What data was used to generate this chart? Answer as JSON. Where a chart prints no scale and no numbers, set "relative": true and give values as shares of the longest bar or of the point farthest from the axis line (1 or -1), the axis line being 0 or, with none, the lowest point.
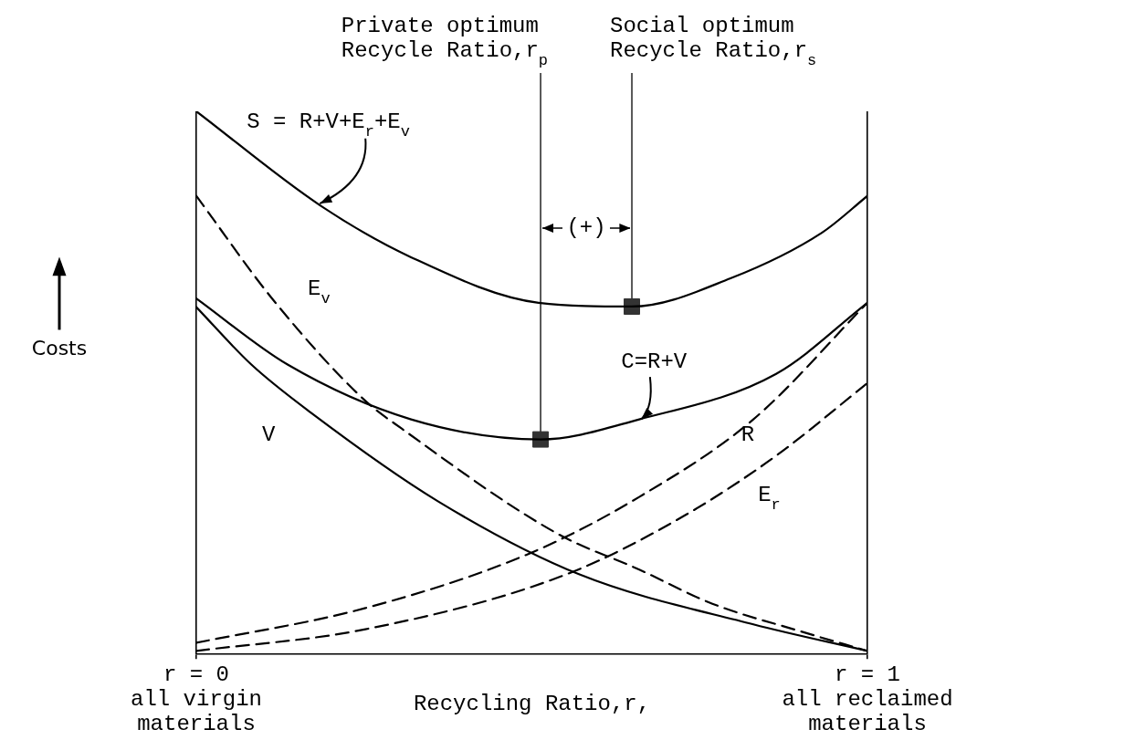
{
  "chart_data": {
    "type": "line",
    "relative": true,
    "xlabel": "Recycling Ratio,r,",
    "ylabel": "Costs",
    "xlim": [
      0,
      1
    ],
    "xticks": [
      {
        "value": 0,
        "label": "r = 0\nall virgin\nmaterials"
      },
      {
        "value": 1,
        "label": "r = 1\nall reclaimed\nmaterials"
      }
    ],
    "grid": "x",
    "legend": false,
    "marker": "none",
    "series": [
      {
        "name": "S = R+V+E$_{r}$+E$_{v}$",
        "color": "#000000",
        "line_style": "solid",
        "x": [
          0,
          0.184,
          0.32,
          0.51,
          0.649,
          0.796,
          0.932,
          1
        ],
        "values": [
          1,
          0.827,
          0.731,
          0.647,
          0.64,
          0.692,
          0.776,
          0.844
        ]
      },
      {
        "name": "C=R+V",
        "color": "#000000",
        "line_style": "solid",
        "x": [
          0,
          0.136,
          0.32,
          0.513,
          0.66,
          0.864,
          1
        ],
        "values": [
          0.655,
          0.533,
          0.432,
          0.395,
          0.432,
          0.516,
          0.647
        ]
      },
      {
        "name": "V",
        "color": "#000000",
        "line_style": "solid",
        "x": [
          0,
          0.082,
          0.17,
          0.36,
          0.571,
          0.83,
          1
        ],
        "values": [
          0.639,
          0.533,
          0.445,
          0.281,
          0.146,
          0.054,
          0.005
        ]
      },
      {
        "name": "E$_{v}$",
        "color": "#000000",
        "line_style": "dashed",
        "x": [
          0,
          0.116,
          0.252,
          0.306,
          0.537,
          0.66,
          0.769,
          0.898,
          1
        ],
        "values": [
          0.844,
          0.65,
          0.466,
          0.415,
          0.222,
          0.155,
          0.092,
          0.042,
          0.005
        ]
      },
      {
        "name": "R",
        "color": "#000000",
        "line_style": "dashed",
        "x": [
          0,
          0.252,
          0.497,
          0.66,
          0.83,
          1
        ],
        "values": [
          0.02,
          0.084,
          0.185,
          0.289,
          0.432,
          0.647
        ]
      },
      {
        "name": "E$_{r}$",
        "color": "#000000",
        "line_style": "dashed",
        "x": [
          0,
          0.252,
          0.551,
          0.728,
          0.864,
          1
        ],
        "values": [
          0.005,
          0.045,
          0.146,
          0.255,
          0.365,
          0.499
        ]
      },
      {
        "type": "scatter",
        "marker": "square",
        "color": "#333333",
        "x": [
          0.513,
          0.649
        ],
        "values": [
          0.395,
          0.64
        ]
      }
    ],
    "ref_lines": [
      {
        "axis": "x",
        "value": 0.513,
        "label": "Private optimum\nRecycle Ratio,r$_{p}$"
      },
      {
        "axis": "x",
        "value": 0.649,
        "label": "Social optimum\nRecycle Ratio,r$_{s}$"
      }
    ],
    "annotations": [
      "(+)"
    ]
  }
}
